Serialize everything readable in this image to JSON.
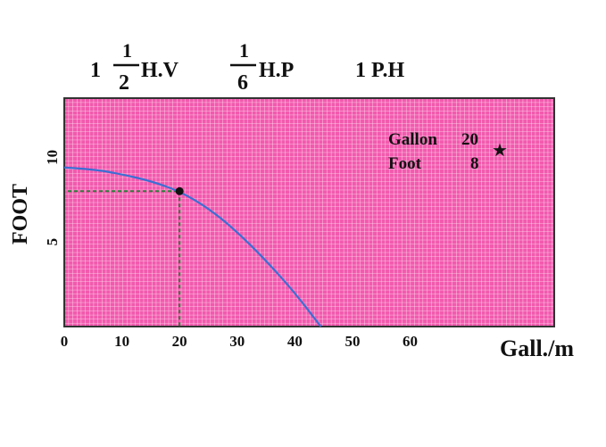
{
  "header": {
    "spec1_whole": "1",
    "spec1_num": "1",
    "spec1_den": "2",
    "spec1_unit": "H.V",
    "spec2_num": "1",
    "spec2_den": "6",
    "spec2_unit": "H.P",
    "spec3": "1 P.H"
  },
  "annotation": {
    "row1_label": "Gallon",
    "row1_value": "20",
    "row2_label": "Foot",
    "row2_value": "8",
    "marker": "star-icon"
  },
  "colors": {
    "plot_bg": "#f25aae",
    "grid": "#ffffff",
    "curve": "#3b6fd4",
    "guide": "#2f7a3a",
    "point": "#111111"
  },
  "chart_data": {
    "type": "line",
    "xlabel": "Gall./m",
    "ylabel": "FOOT",
    "xlim": [
      0,
      85
    ],
    "ylim": [
      0,
      13.5
    ],
    "xticks": [
      0,
      10,
      20,
      30,
      40,
      50,
      60
    ],
    "yticks": [
      5,
      10
    ],
    "grid": true,
    "series": [
      {
        "x": [
          0,
          5,
          10,
          15,
          20,
          25,
          30,
          35,
          40,
          44.5
        ],
        "y": [
          9.4,
          9.3,
          9.0,
          8.6,
          8.0,
          7.0,
          5.6,
          3.9,
          2.0,
          0
        ]
      }
    ],
    "highlight_point": {
      "x": 20,
      "y": 8
    }
  }
}
